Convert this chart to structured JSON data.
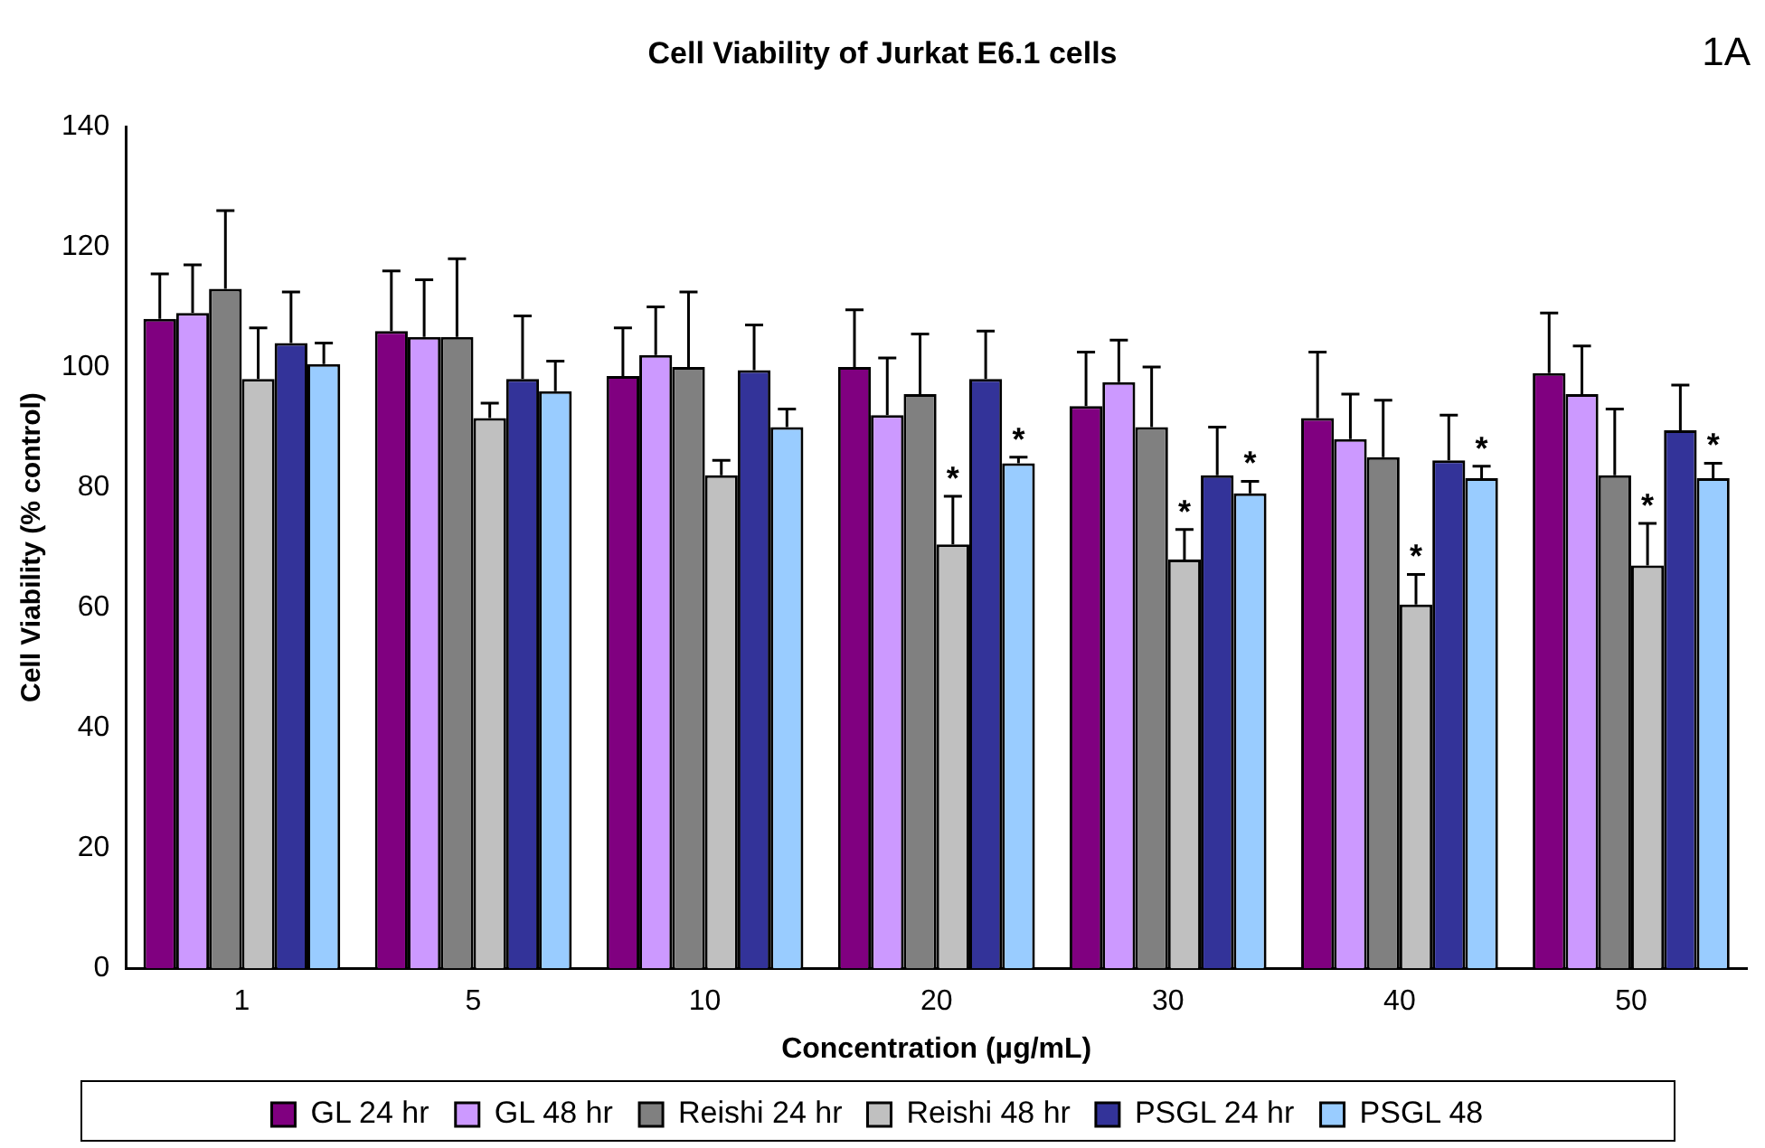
{
  "chart_data": {
    "type": "bar",
    "title": "Cell Viability of Jurkat E6.1 cells",
    "xlabel": "Concentration (μg/mL)",
    "ylabel": "Cell Viability (% control)",
    "categories": [
      "1",
      "5",
      "10",
      "20",
      "30",
      "40",
      "50"
    ],
    "series": [
      {
        "name": "GL 24 hr",
        "color": "#800080",
        "values": [
          108,
          106,
          98.5,
          100,
          93.5,
          91.5,
          99
        ],
        "errors": [
          7.5,
          10,
          8,
          9.5,
          9,
          11,
          10
        ]
      },
      {
        "name": "GL 48 hr",
        "color": "#cc99ff",
        "values": [
          109,
          105,
          102,
          92,
          97.5,
          88,
          95.5
        ],
        "errors": [
          8,
          9.5,
          8,
          9.5,
          7,
          7.5,
          8
        ]
      },
      {
        "name": "Reishi 24 hr",
        "color": "#808080",
        "values": [
          113,
          105,
          100,
          95.5,
          90,
          85,
          82
        ],
        "errors": [
          13,
          13,
          12.5,
          10,
          10,
          9.5,
          11
        ]
      },
      {
        "name": "Reishi 48 hr",
        "color": "#c0c0c0",
        "values": [
          98,
          91.5,
          82,
          70.5,
          68,
          60.5,
          67
        ],
        "errors": [
          8.5,
          2.5,
          2.5,
          8,
          5,
          5,
          7
        ]
      },
      {
        "name": "PSGL 24 hr",
        "color": "#333399",
        "values": [
          104,
          98,
          99.5,
          98,
          82,
          84.5,
          89.5
        ],
        "errors": [
          8.5,
          10.5,
          7.5,
          8,
          8,
          7.5,
          7.5
        ]
      },
      {
        "name": "PSGL 48",
        "color": "#99ccff",
        "values": [
          100.5,
          96,
          90,
          84,
          79,
          81.5,
          81.5
        ],
        "errors": [
          3.5,
          5,
          3,
          1,
          2,
          2,
          2.5
        ]
      }
    ],
    "ylim": [
      0,
      140
    ],
    "yticks": [
      0,
      20,
      40,
      60,
      80,
      100,
      120,
      140
    ],
    "grid": false,
    "legend": "bottom",
    "annotations": [
      "1A",
      {
        "text": "*",
        "x": "20",
        "y": 70.5
      },
      {
        "text": "*",
        "x": "20",
        "y": 84
      },
      {
        "text": "*",
        "x": "30",
        "y": 68
      },
      {
        "text": "*",
        "x": "30",
        "y": 79
      },
      {
        "text": "*",
        "x": "40",
        "y": 60.5
      },
      {
        "text": "*",
        "x": "40",
        "y": 81.5
      },
      {
        "text": "*",
        "x": "50",
        "y": 67
      },
      {
        "text": "*",
        "x": "50",
        "y": 81.5
      }
    ]
  }
}
